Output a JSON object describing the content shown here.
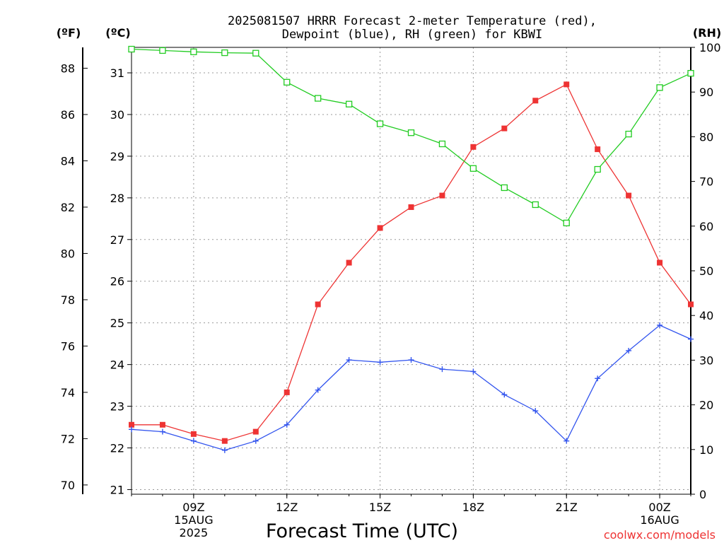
{
  "chart_data": {
    "type": "line",
    "title_lines": [
      "2025081507 HRRR Forecast 2-meter Temperature (red),",
      "Dewpoint (blue), RH (green) for KBWI"
    ],
    "xlabel": "Forecast Time (UTC)",
    "credit": "coolwx.com/models",
    "left_unit_f": "(ºF)",
    "left_unit_c": "(ºC)",
    "right_unit": "(RH)",
    "x_hours": [
      7,
      8,
      9,
      10,
      11,
      12,
      13,
      14,
      15,
      16,
      17,
      18,
      19,
      20,
      21,
      22,
      23,
      24,
      25
    ],
    "x_range_hours": [
      7,
      25
    ],
    "x_ticks": [
      {
        "h": 9,
        "lines": [
          "09Z",
          "15AUG",
          "2025"
        ]
      },
      {
        "h": 12,
        "lines": [
          "12Z"
        ]
      },
      {
        "h": 15,
        "lines": [
          "15Z"
        ]
      },
      {
        "h": 18,
        "lines": [
          "18Z"
        ]
      },
      {
        "h": 21,
        "lines": [
          "21Z"
        ]
      },
      {
        "h": 24,
        "lines": [
          "00Z",
          "16AUG"
        ]
      }
    ],
    "y_f": {
      "range": [
        69.6,
        88.9
      ],
      "ticks": [
        70,
        72,
        74,
        76,
        78,
        80,
        82,
        84,
        86,
        88
      ]
    },
    "y_c": {
      "ticks": [
        21,
        22,
        23,
        24,
        25,
        26,
        27,
        28,
        29,
        30,
        31
      ]
    },
    "y_rh": {
      "range": [
        0,
        100
      ],
      "ticks": [
        0,
        10,
        20,
        30,
        40,
        50,
        60,
        70,
        80,
        90,
        100
      ]
    },
    "series": [
      {
        "name": "Temperature",
        "axis": "f",
        "color": "#ee3333",
        "marker": "filled-square",
        "values": [
          72.6,
          72.6,
          72.2,
          71.9,
          72.3,
          74.0,
          77.8,
          79.6,
          81.1,
          82.0,
          82.5,
          84.6,
          85.4,
          86.6,
          87.3,
          84.5,
          82.5,
          79.6,
          77.8
        ]
      },
      {
        "name": "Dewpoint",
        "axis": "f",
        "color": "#3355ee",
        "marker": "plus",
        "values": [
          72.4,
          72.3,
          71.9,
          71.5,
          71.9,
          72.6,
          74.1,
          75.4,
          75.3,
          75.4,
          75.0,
          74.9,
          73.9,
          73.2,
          71.9,
          74.6,
          75.8,
          76.9,
          76.3
        ]
      },
      {
        "name": "RH",
        "axis": "rh",
        "color": "#22cc22",
        "marker": "open-square",
        "values": [
          99.6,
          99.3,
          99.0,
          98.8,
          98.7,
          92.2,
          88.6,
          87.3,
          82.9,
          80.9,
          78.4,
          72.9,
          68.6,
          64.8,
          60.7,
          72.7,
          80.6,
          91.0,
          94.2
        ]
      }
    ],
    "grid": true,
    "legend": "in title"
  }
}
